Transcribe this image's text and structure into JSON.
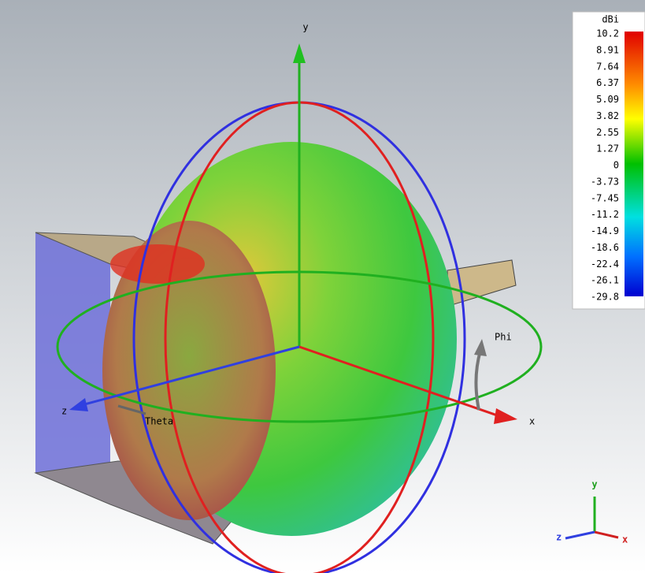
{
  "colorbar": {
    "title": "dBi",
    "labels": [
      "10.2",
      "8.91",
      "7.64",
      "6.37",
      "5.09",
      "3.82",
      "2.55",
      "1.27",
      "0",
      "-3.73",
      "-7.45",
      "-11.2",
      "-14.9",
      "-18.6",
      "-22.4",
      "-26.1",
      "-29.8"
    ]
  },
  "axes": {
    "y": "y",
    "x": "x",
    "z": "z",
    "theta": "Theta",
    "phi": "Phi"
  },
  "triad": {
    "y": "y",
    "z": "z",
    "x": "x"
  }
}
